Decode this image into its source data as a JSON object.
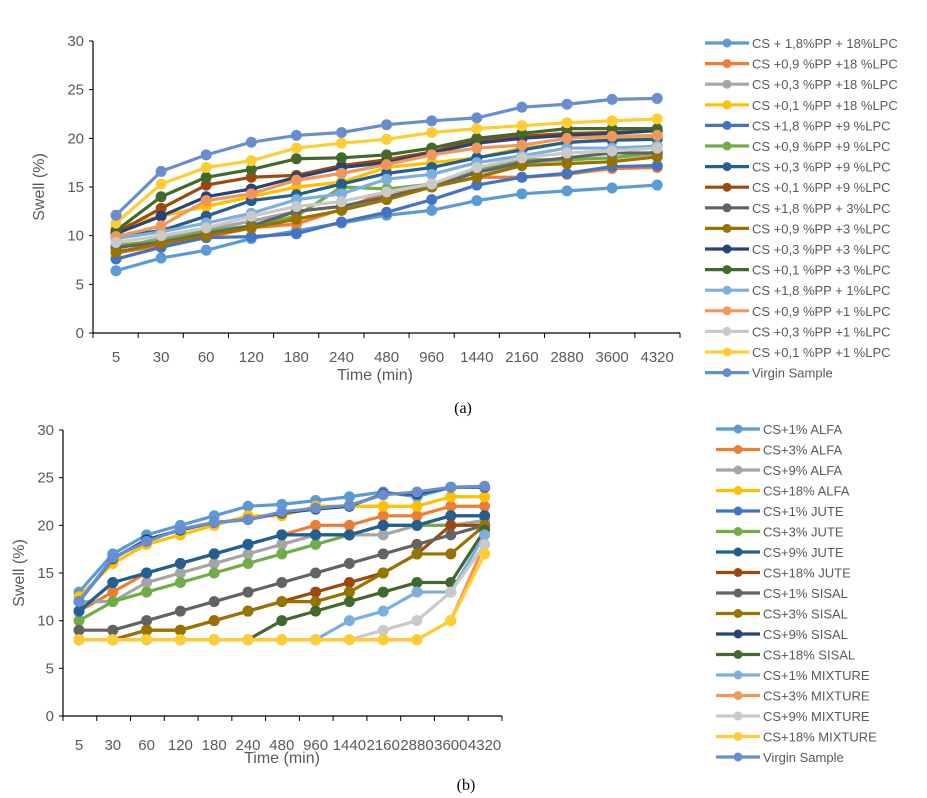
{
  "chart_data": [
    {
      "type": "line",
      "caption": "(a)",
      "xlabel": "Time (min)",
      "ylabel": "Swell (%)",
      "ylim": [
        0,
        30
      ],
      "yticks": [
        0,
        5,
        10,
        15,
        20,
        25,
        30
      ],
      "grid": false,
      "legend_position": "right",
      "categories": [
        "5",
        "30",
        "60",
        "120",
        "180",
        "240",
        "480",
        "960",
        "1440",
        "2160",
        "2880",
        "3600",
        "4320"
      ],
      "series": [
        {
          "name": "CS + 1,8%PP + 18%LPC",
          "color": "#5B9BD5",
          "values": [
            6.4,
            7.7,
            8.5,
            9.7,
            10.5,
            11.3,
            12.1,
            12.6,
            13.6,
            14.3,
            14.6,
            14.9,
            15.2
          ]
        },
        {
          "name": "CS +0,9 %PP +18 %LPC",
          "color": "#ED7D31",
          "values": [
            8.2,
            9.0,
            9.8,
            10.8,
            11.2,
            12.7,
            14.5,
            15.0,
            16.0,
            16.0,
            16.3,
            16.9,
            17.0
          ]
        },
        {
          "name": "CS +0,3 %PP +18 %LPC",
          "color": "#A5A5A5",
          "values": [
            8.6,
            9.8,
            10.6,
            11.5,
            12.5,
            13.0,
            14.0,
            15.0,
            16.0,
            17.5,
            17.8,
            18.0,
            18.4
          ]
        },
        {
          "name": "CS +0,1 %PP +18 %LPC",
          "color": "#FFC000",
          "values": [
            10.8,
            12.0,
            13.0,
            14.0,
            15.0,
            15.5,
            17.0,
            17.5,
            18.0,
            19.0,
            19.5,
            20.0,
            20.2
          ]
        },
        {
          "name": "CS +1,8 %PP +9 %LPC",
          "color": "#4472C4",
          "values": [
            7.6,
            8.8,
            9.8,
            9.9,
            10.2,
            11.4,
            12.4,
            13.7,
            15.2,
            16.0,
            16.4,
            17.1,
            17.2
          ]
        },
        {
          "name": "CS +0,9 %PP +9 %LPC",
          "color": "#70AD47",
          "values": [
            9.0,
            9.5,
            10.5,
            11.0,
            12.0,
            15.0,
            14.8,
            15.3,
            16.8,
            17.8,
            17.8,
            18.0,
            18.6
          ]
        },
        {
          "name": "CS +0,3 %PP +9 %LPC",
          "color": "#255E91",
          "values": [
            10.0,
            10.5,
            12.0,
            13.6,
            14.2,
            15.3,
            16.4,
            17.0,
            18.0,
            18.8,
            19.6,
            19.8,
            19.9
          ]
        },
        {
          "name": "CS +0,1 %PP +9 %LPC",
          "color": "#9E480E",
          "values": [
            10.3,
            12.8,
            15.2,
            16.0,
            16.2,
            17.2,
            17.8,
            18.6,
            19.8,
            20.2,
            20.5,
            20.6,
            20.8
          ]
        },
        {
          "name": "CS +1,8 %PP + 3%LPC",
          "color": "#636363",
          "values": [
            8.8,
            9.3,
            10.2,
            11.0,
            12.5,
            13.0,
            14.0,
            15.0,
            16.5,
            17.5,
            18.0,
            18.5,
            18.5
          ]
        },
        {
          "name": "CS +0,9 %PP +3 %LPC",
          "color": "#997300",
          "values": [
            8.3,
            9.2,
            10.0,
            10.8,
            11.7,
            12.6,
            13.7,
            15.0,
            16.0,
            17.2,
            17.4,
            17.6,
            18.1
          ]
        },
        {
          "name": "CS +0,3 %PP +3 %LPC",
          "color": "#264478",
          "values": [
            10.2,
            12.0,
            14.0,
            14.8,
            16.0,
            17.0,
            17.5,
            18.5,
            19.5,
            20.0,
            20.3,
            20.5,
            20.8
          ]
        },
        {
          "name": "CS +0,1 %PP +3 %LPC",
          "color": "#43682B",
          "values": [
            10.5,
            14.0,
            16.0,
            16.8,
            17.9,
            18.0,
            18.3,
            19.0,
            20.0,
            20.5,
            21.0,
            21.0,
            21.0
          ]
        },
        {
          "name": "CS +1,8 %PP + 1%LPC",
          "color": "#7CAFDD",
          "values": [
            9.7,
            10.4,
            11.3,
            12.3,
            13.7,
            14.3,
            15.8,
            16.3,
            17.5,
            18.2,
            19.0,
            19.0,
            19.2
          ]
        },
        {
          "name": "CS +0,9 %PP +1 %LPC",
          "color": "#F1975A",
          "values": [
            9.9,
            11.0,
            13.6,
            14.3,
            15.7,
            16.4,
            17.3,
            18.3,
            19.0,
            19.3,
            20.0,
            20.2,
            20.3
          ]
        },
        {
          "name": "CS +0,3 %PP +1 %LPC",
          "color": "#C9C9C9",
          "values": [
            9.3,
            10.0,
            10.8,
            12.0,
            13.0,
            13.5,
            14.5,
            15.3,
            17.0,
            18.0,
            18.5,
            18.7,
            19.0
          ]
        },
        {
          "name": "CS +0,1 %PP +1 %LPC",
          "color": "#FFCD33",
          "values": [
            11.3,
            15.3,
            17.0,
            17.7,
            19.0,
            19.5,
            19.9,
            20.6,
            21.0,
            21.3,
            21.6,
            21.8,
            22.0
          ]
        },
        {
          "name": "Virgin Sample",
          "color": "#698ED0",
          "values": [
            12.1,
            16.6,
            18.3,
            19.6,
            20.3,
            20.6,
            21.4,
            21.8,
            22.1,
            23.2,
            23.5,
            24.0,
            24.1
          ]
        }
      ]
    },
    {
      "type": "line",
      "caption": "(b)",
      "xlabel": "Time (min)",
      "ylabel": "Swell (%)",
      "ylim": [
        0,
        30
      ],
      "yticks": [
        0,
        5,
        10,
        15,
        20,
        25,
        30
      ],
      "grid": false,
      "legend_position": "right",
      "categories": [
        "5",
        "30",
        "60",
        "120",
        "180",
        "240",
        "480",
        "960",
        "1440",
        "2160",
        "2880",
        "3600",
        "4320"
      ],
      "series": [
        {
          "name": "CS+1% ALFA",
          "color": "#5B9BD5",
          "values": [
            13,
            17,
            19,
            20,
            21,
            22,
            22.2,
            22.6,
            23,
            23.5,
            23,
            24,
            24
          ]
        },
        {
          "name": "CS+3% ALFA",
          "color": "#ED7D31",
          "values": [
            11,
            13,
            15,
            16,
            17,
            18,
            19,
            20,
            20,
            21,
            21,
            22,
            22
          ]
        },
        {
          "name": "CS+9% ALFA",
          "color": "#A5A5A5",
          "values": [
            12,
            12,
            14,
            15,
            16,
            17,
            18,
            19,
            19,
            19,
            20,
            20,
            20.5
          ]
        },
        {
          "name": "CS+18% ALFA",
          "color": "#FFC000",
          "values": [
            12.5,
            16,
            18,
            19,
            20,
            21,
            21,
            22,
            22,
            22,
            22,
            23,
            23
          ]
        },
        {
          "name": "CS+1% JUTE",
          "color": "#4472C4",
          "values": [
            11,
            14,
            15,
            16,
            17,
            18,
            19,
            19,
            19,
            20,
            20,
            21,
            21
          ]
        },
        {
          "name": "CS+3% JUTE",
          "color": "#70AD47",
          "values": [
            10,
            12,
            13,
            14,
            15,
            16,
            17,
            18,
            19,
            20,
            20,
            20,
            20
          ]
        },
        {
          "name": "CS+9% JUTE",
          "color": "#255E91",
          "values": [
            11,
            14,
            15,
            16,
            17,
            18,
            19,
            19,
            19,
            20,
            20,
            21,
            21
          ]
        },
        {
          "name": "CS+18% JUTE",
          "color": "#9E480E",
          "values": [
            8,
            8,
            9,
            9,
            10,
            11,
            12,
            13,
            14,
            15,
            17,
            20,
            20
          ]
        },
        {
          "name": "CS+1% SISAL",
          "color": "#636363",
          "values": [
            9,
            9,
            10,
            11,
            12,
            13,
            14,
            15,
            16,
            17,
            18,
            19,
            20
          ]
        },
        {
          "name": "CS+3% SISAL",
          "color": "#997300",
          "values": [
            8,
            8,
            9,
            9,
            10,
            11,
            12,
            12,
            13,
            15,
            17,
            17,
            20
          ]
        },
        {
          "name": "CS+9% SISAL",
          "color": "#264478",
          "values": [
            12,
            16.5,
            18.5,
            19.5,
            20.3,
            20.6,
            21.3,
            21.7,
            22,
            23.3,
            23.3,
            24,
            24
          ]
        },
        {
          "name": "CS+18% SISAL",
          "color": "#43682B",
          "values": [
            8,
            8,
            8,
            8,
            8,
            8,
            10,
            11,
            12,
            13,
            14,
            14,
            19.5
          ]
        },
        {
          "name": "CS+1% MIXTURE",
          "color": "#7CAFDD",
          "values": [
            8,
            8,
            8,
            8,
            8,
            8,
            8,
            8,
            10,
            11,
            13,
            13,
            19
          ]
        },
        {
          "name": "CS+3% MIXTURE",
          "color": "#F1975A",
          "values": [
            8,
            8,
            8,
            8,
            8,
            8,
            8,
            8,
            8,
            8,
            8,
            10,
            18
          ]
        },
        {
          "name": "CS+9% MIXTURE",
          "color": "#C9C9C9",
          "values": [
            8,
            8,
            8,
            8,
            8,
            8,
            8,
            8,
            8,
            9,
            10,
            13,
            18
          ]
        },
        {
          "name": "CS+18% MIXTURE",
          "color": "#FFCD33",
          "values": [
            8,
            8,
            8,
            8,
            8,
            8,
            8,
            8,
            8,
            8,
            8,
            10,
            17
          ]
        },
        {
          "name": "Virgin Sample",
          "color": "#698ED0",
          "values": [
            12,
            16.6,
            18.3,
            19.6,
            20.3,
            20.6,
            21.4,
            21.8,
            22.1,
            23.2,
            23.5,
            24,
            24.1
          ]
        }
      ]
    }
  ]
}
